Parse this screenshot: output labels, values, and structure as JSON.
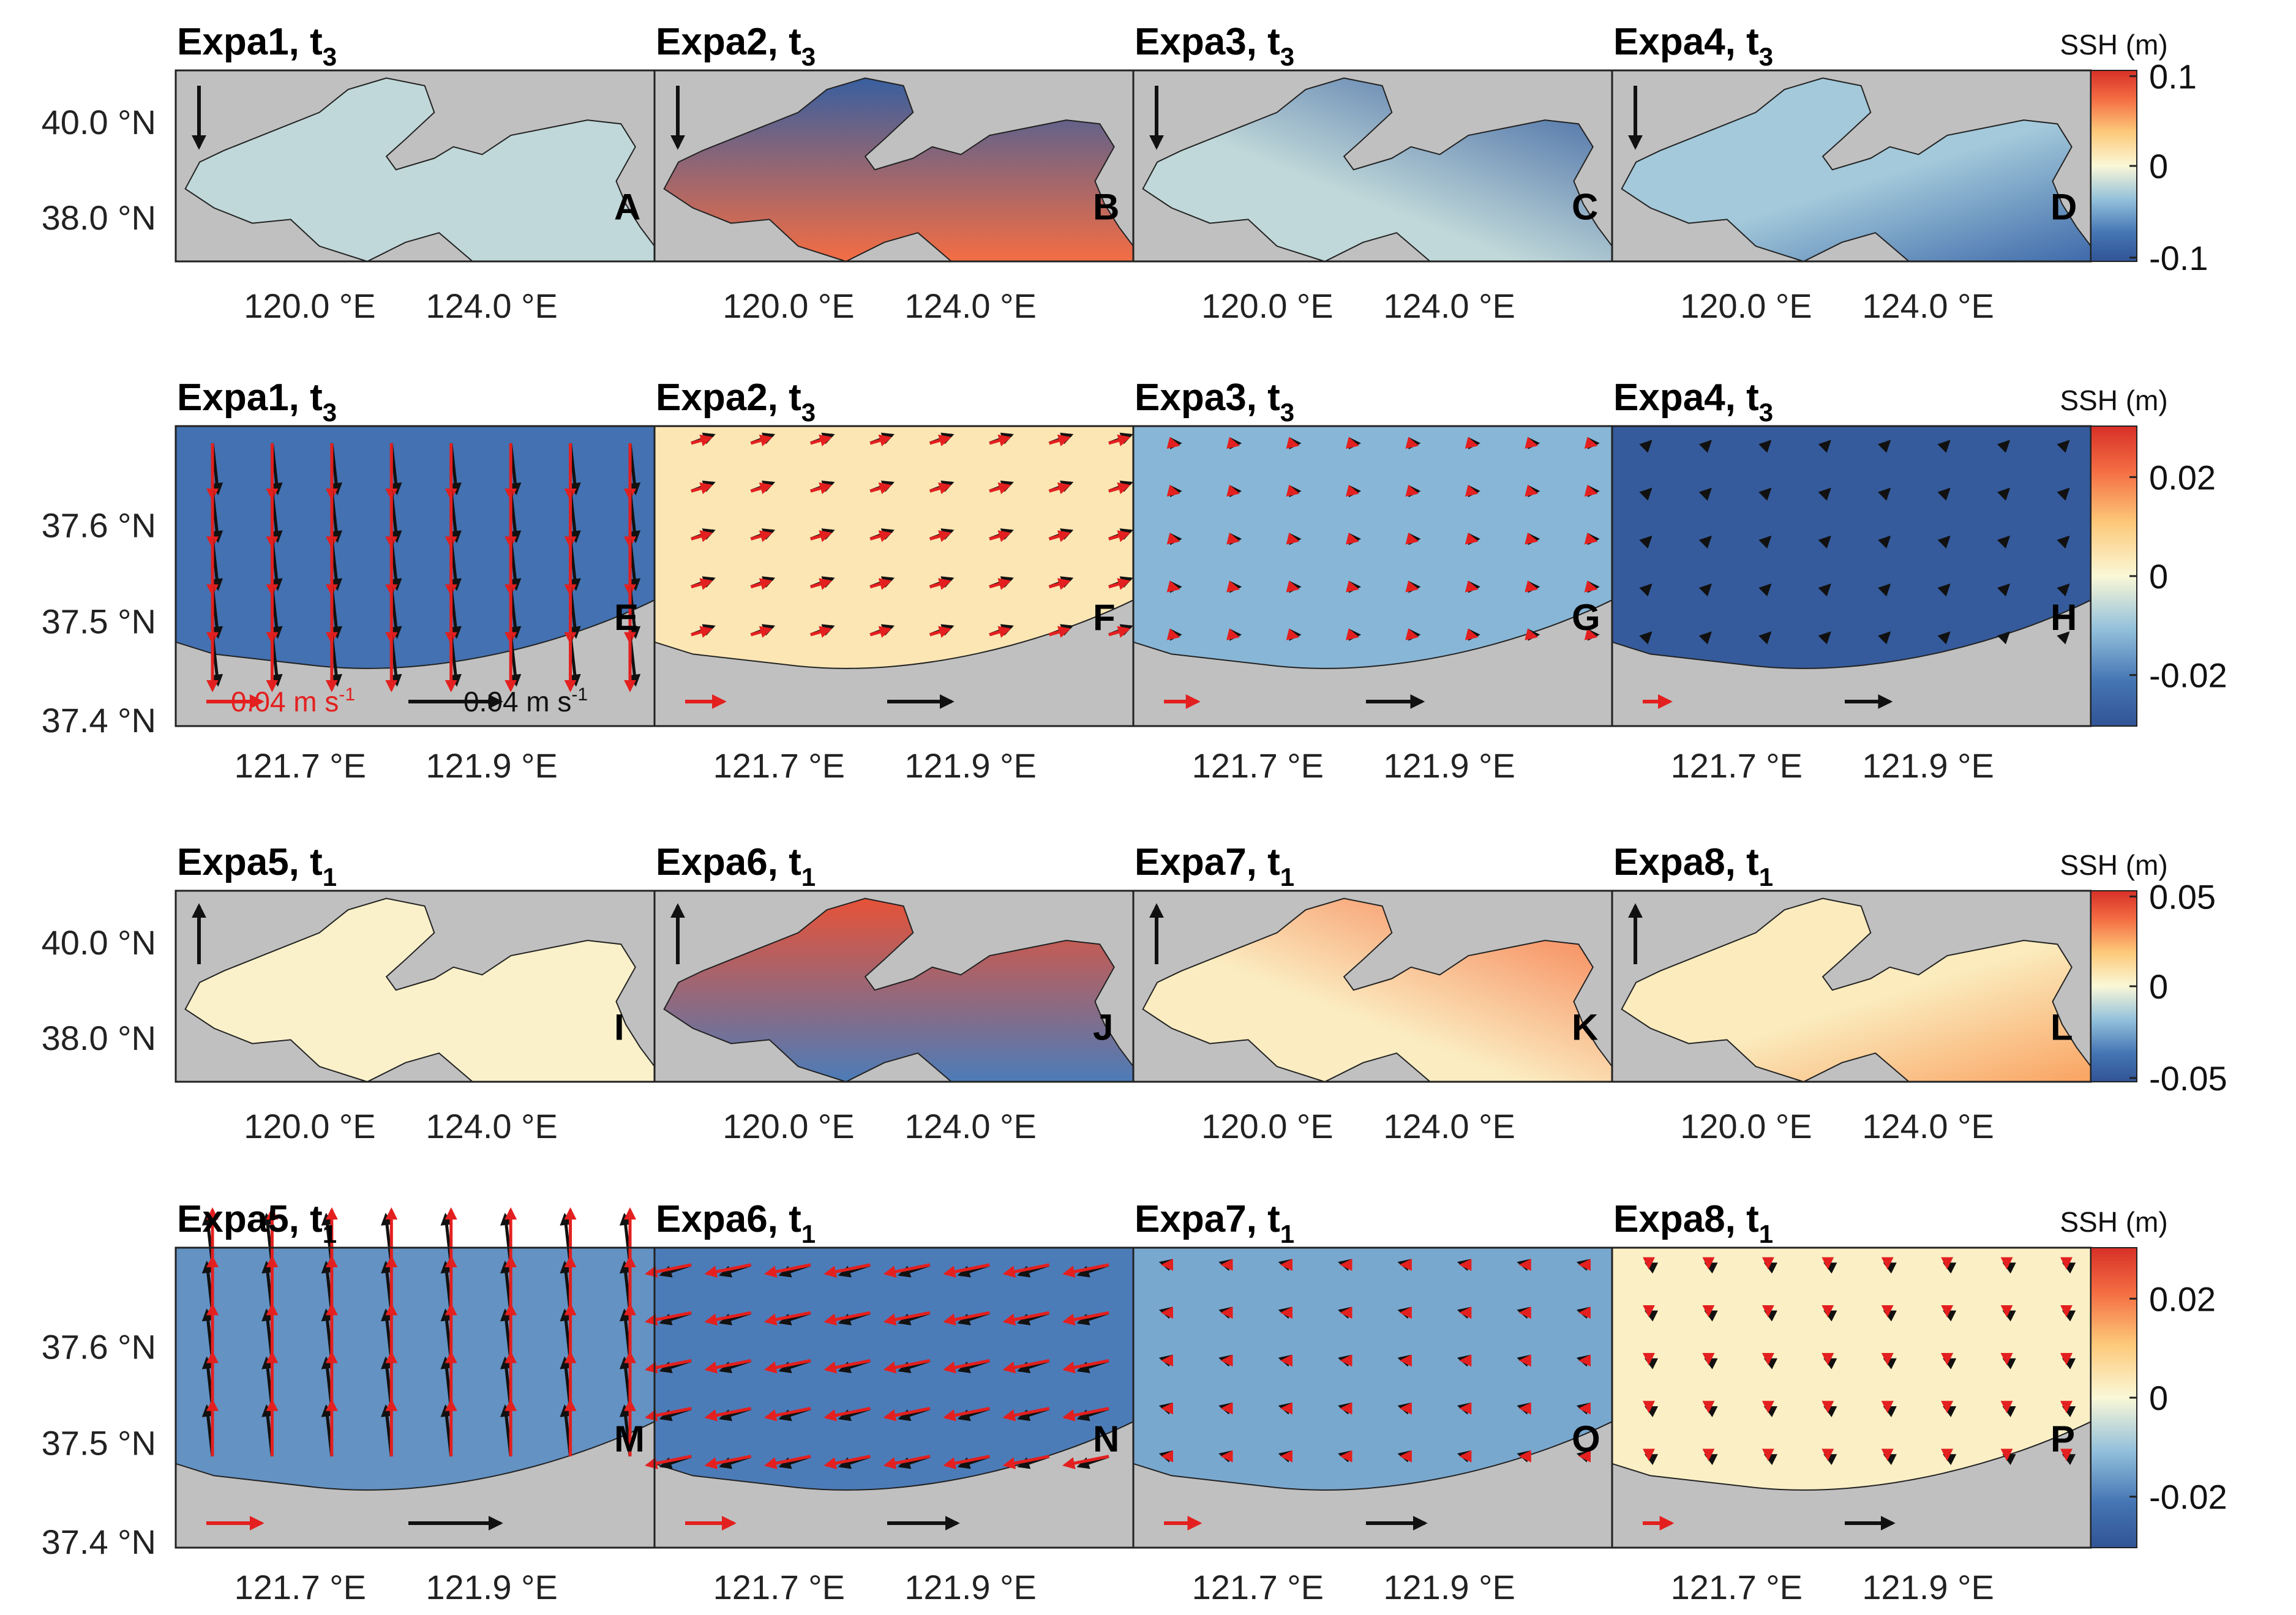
{
  "chart_data": {
    "type": "heatmap",
    "description_note": "",
    "rows": [
      {
        "kind": "overview",
        "lat_ticks": [
          "40.0 °N",
          "38.0 °N"
        ],
        "lon_ticks": [
          "120.0 °E",
          "124.0 °E"
        ],
        "wind_direction": "south",
        "colorbar": {
          "unit": "SSH (m)",
          "ticks": [
            "0.1",
            "0",
            "-0.1"
          ],
          "range": [
            -0.1,
            0.1
          ]
        },
        "panels": [
          {
            "title": "Expa1, t",
            "sub": "3",
            "label": "A",
            "pattern": "uniform",
            "value": -0.02
          },
          {
            "title": "Expa2, t",
            "sub": "3",
            "label": "B",
            "pattern": "north-low-south-high",
            "value": -0.02
          },
          {
            "title": "Expa3, t",
            "sub": "3",
            "label": "C",
            "pattern": "northeast-low",
            "value": -0.02
          },
          {
            "title": "Expa4, t",
            "sub": "3",
            "label": "D",
            "pattern": "southeast-low",
            "value": -0.03
          }
        ]
      },
      {
        "kind": "zoom",
        "lat_ticks": [
          "37.6 °N",
          "37.5 °N",
          "37.4 °N"
        ],
        "lon_ticks": [
          "121.7 °E",
          "121.9 °E"
        ],
        "colorbar": {
          "unit": "SSH (m)",
          "ticks": [
            "0.02",
            "0",
            "-0.02"
          ],
          "range": [
            -0.03,
            0.03
          ]
        },
        "scale_text": {
          "red": "0.04 m s",
          "black": "0.04 m s",
          "sup": "-1"
        },
        "panels": [
          {
            "title": "Expa1, t",
            "sub": "3",
            "label": "E",
            "ssh": -0.022,
            "red": [
              0.0,
              -1.0
            ],
            "black": [
              0.1,
              -0.9
            ],
            "redScale": 1.0,
            "blackScale": 1.0
          },
          {
            "title": "Expa2, t",
            "sub": "3",
            "label": "F",
            "ssh": 0.004,
            "red": [
              0.7,
              0.2
            ],
            "black": [
              0.8,
              0.3
            ],
            "redScale": 0.5,
            "blackScale": 0.5
          },
          {
            "title": "Expa3, t",
            "sub": "3",
            "label": "G",
            "ssh": -0.012,
            "red": [
              0.4,
              -0.1
            ],
            "black": [
              0.5,
              0.0
            ],
            "redScale": 0.35,
            "blackScale": 0.35
          },
          {
            "title": "Expa4, t",
            "sub": "3",
            "label": "H",
            "ssh": -0.028,
            "red": [
              0.0,
              0.0
            ],
            "black": [
              0.2,
              0.2
            ],
            "redScale": 0.15,
            "blackScale": 0.15
          }
        ]
      },
      {
        "kind": "overview",
        "lat_ticks": [
          "40.0 °N",
          "38.0 °N"
        ],
        "lon_ticks": [
          "120.0 °E",
          "124.0 °E"
        ],
        "wind_direction": "north",
        "colorbar": {
          "unit": "SSH (m)",
          "ticks": [
            "0.05",
            "0",
            "-0.05"
          ],
          "range": [
            -0.06,
            0.06
          ]
        },
        "panels": [
          {
            "title": "Expa5, t",
            "sub": "1",
            "label": "I",
            "pattern": "uniform",
            "value": 0.003
          },
          {
            "title": "Expa6, t",
            "sub": "1",
            "label": "J",
            "pattern": "north-high-south-low",
            "value": 0.003
          },
          {
            "title": "Expa7, t",
            "sub": "1",
            "label": "K",
            "pattern": "northeast-high",
            "value": 0.005
          },
          {
            "title": "Expa8, t",
            "sub": "1",
            "label": "L",
            "pattern": "southeast-high",
            "value": 0.006
          }
        ]
      },
      {
        "kind": "zoom",
        "lat_ticks": [
          "37.6 °N",
          "37.5 °N",
          "37.4 °N"
        ],
        "lon_ticks": [
          "121.7 °E",
          "121.9 °E"
        ],
        "colorbar": {
          "unit": "SSH (m)",
          "ticks": [
            "0.02",
            "0",
            "-0.02"
          ],
          "range": [
            -0.03,
            0.03
          ]
        },
        "panels": [
          {
            "title": "Expa5, t",
            "sub": "1",
            "label": "M",
            "ssh": -0.017,
            "red": [
              0.0,
              1.0
            ],
            "black": [
              -0.1,
              0.9
            ],
            "redScale": 1.0,
            "blackScale": 1.0
          },
          {
            "title": "Expa6, t",
            "sub": "1",
            "label": "N",
            "ssh": -0.02,
            "red": [
              -1.0,
              -0.2
            ],
            "black": [
              -0.9,
              -0.3
            ],
            "redScale": 0.8,
            "blackScale": 0.6
          },
          {
            "title": "Expa7, t",
            "sub": "1",
            "label": "O",
            "ssh": -0.014,
            "red": [
              -0.3,
              0.0
            ],
            "black": [
              -0.4,
              0.1
            ],
            "redScale": 0.4,
            "blackScale": 0.4
          },
          {
            "title": "Expa8, t",
            "sub": "1",
            "label": "P",
            "ssh": 0.002,
            "red": [
              0.0,
              -0.2
            ],
            "black": [
              -0.2,
              0.1
            ],
            "redScale": 0.2,
            "blackScale": 0.2
          }
        ]
      }
    ]
  }
}
